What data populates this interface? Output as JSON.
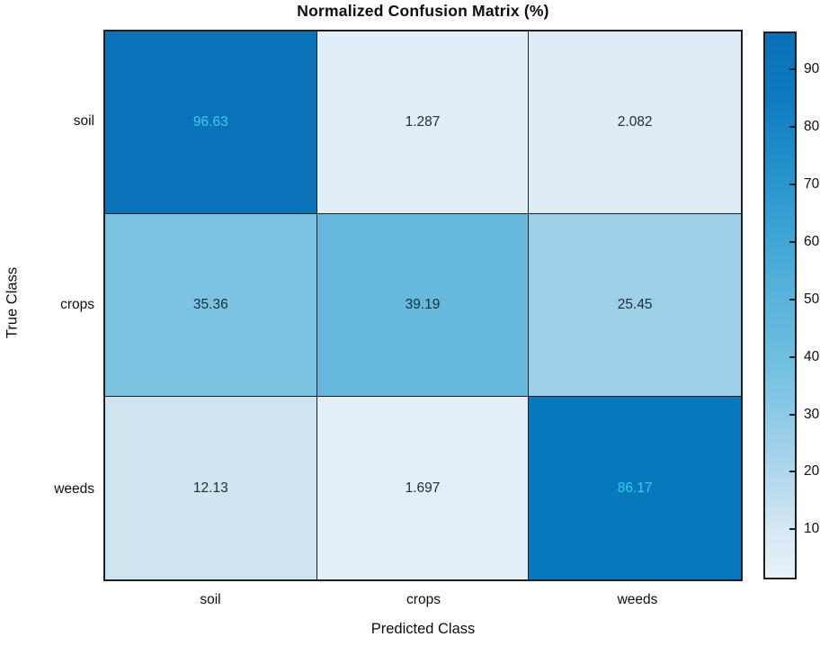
{
  "chart_data": {
    "type": "heatmap",
    "title": "Normalized Confusion Matrix (%)",
    "xlabel": "Predicted Class",
    "ylabel": "True Class",
    "x_categories": [
      "soil",
      "crops",
      "weeds"
    ],
    "y_categories": [
      "soil",
      "crops",
      "weeds"
    ],
    "matrix": [
      [
        96.63,
        1.287,
        2.082
      ],
      [
        35.36,
        39.19,
        25.45
      ],
      [
        12.13,
        1.697,
        86.17
      ]
    ],
    "cell_labels": [
      [
        "96.63",
        "1.287",
        "2.082"
      ],
      [
        "35.36",
        "39.19",
        "25.45"
      ],
      [
        "12.13",
        "1.697",
        "86.17"
      ]
    ],
    "cell_colors": [
      [
        "#0a72b8",
        "#e2eef7",
        "#dfecf6"
      ],
      [
        "#7cc3e1",
        "#66b9dd",
        "#9dd0e7"
      ],
      [
        "#cfe4f1",
        "#e3eef7",
        "#0878bd"
      ]
    ],
    "cell_text_colors": [
      [
        "#37cfec",
        "#142f3d",
        "#142f3d"
      ],
      [
        "#142f3d",
        "#142f3d",
        "#142f3d"
      ],
      [
        "#142f3d",
        "#142f3d",
        "#37cfec"
      ]
    ],
    "grid_line_color": "#1f1f1f",
    "colorbar": {
      "min": 1.287,
      "max": 96.63,
      "ticks": [
        "10",
        "20",
        "30",
        "40",
        "50",
        "60",
        "70",
        "80",
        "90"
      ],
      "gradient_stops": [
        {
          "pos": 0.0,
          "color": "#0a70b6"
        },
        {
          "pos": 0.12,
          "color": "#0d7cc0"
        },
        {
          "pos": 0.3,
          "color": "#2e9ad0"
        },
        {
          "pos": 0.45,
          "color": "#51afd9"
        },
        {
          "pos": 0.62,
          "color": "#74c1e1"
        },
        {
          "pos": 0.78,
          "color": "#a5d3ea"
        },
        {
          "pos": 0.92,
          "color": "#d7e9f3"
        },
        {
          "pos": 1.0,
          "color": "#e9f1f8"
        }
      ]
    },
    "legend": false
  }
}
